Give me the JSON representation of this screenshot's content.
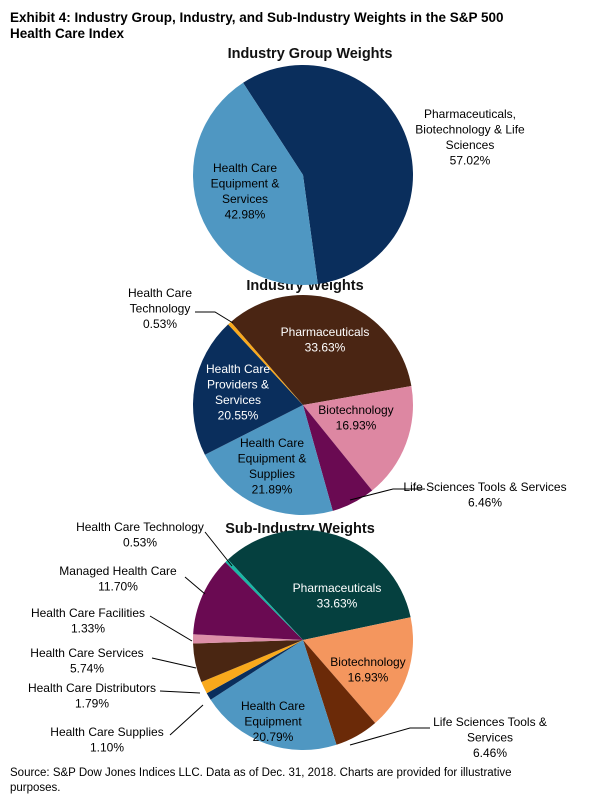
{
  "title": [
    "Exhibit 4: Industry Group, Industry, and Sub-Industry Weights in the S&P 500",
    "Health Care Index"
  ],
  "source": [
    "Source: S&P Dow Jones Indices LLC.  Data as of Dec. 31, 2018.  Charts are provided for illustrative",
    "purposes."
  ],
  "chart_data": [
    {
      "type": "pie",
      "title": "Industry Group Weights",
      "slices": [
        {
          "name": "Pharmaceuticals, Biotechnology & Life Sciences",
          "value": 57.02,
          "color": "#0a2e5c",
          "label": [
            "Pharmaceuticals,",
            "Biotechnology & Life",
            "Sciences",
            "57.02%"
          ]
        },
        {
          "name": "Health Care Equipment & Services",
          "value": 42.98,
          "color": "#4f97c2",
          "label": [
            "Health Care",
            "Equipment &",
            "Services",
            "42.98%"
          ]
        }
      ]
    },
    {
      "type": "pie",
      "title": "Industry Weights",
      "slices": [
        {
          "name": "Pharmaceuticals",
          "value": 33.63,
          "color": "#4a2513",
          "label": [
            "Pharmaceuticals",
            "33.63%"
          ]
        },
        {
          "name": "Biotechnology",
          "value": 16.93,
          "color": "#dd87a2",
          "label": [
            "Biotechnology",
            "16.93%"
          ]
        },
        {
          "name": "Life Sciences Tools & Services",
          "value": 6.46,
          "color": "#6a0a52",
          "label": [
            "Life Sciences Tools & Services",
            "6.46%"
          ]
        },
        {
          "name": "Health Care Equipment & Supplies",
          "value": 21.89,
          "color": "#4f97c2",
          "label": [
            "Health Care",
            "Equipment &",
            "Supplies",
            "21.89%"
          ]
        },
        {
          "name": "Health Care Providers & Services",
          "value": 20.55,
          "color": "#0a2e5c",
          "label": [
            "Health Care",
            "Providers &",
            "Services",
            "20.55%"
          ]
        },
        {
          "name": "Health Care Technology",
          "value": 0.53,
          "color": "#f9a91c",
          "label": [
            "Health Care",
            "Technology",
            "0.53%"
          ]
        }
      ]
    },
    {
      "type": "pie",
      "title": "Sub-Industry Weights",
      "slices": [
        {
          "name": "Pharmaceuticals",
          "value": 33.63,
          "color": "#05403f",
          "label": [
            "Pharmaceuticals",
            "33.63%"
          ]
        },
        {
          "name": "Biotechnology",
          "value": 16.93,
          "color": "#f4965e",
          "label": [
            "Biotechnology",
            "16.93%"
          ]
        },
        {
          "name": "Life Sciences Tools & Services",
          "value": 6.46,
          "color": "#6b2a08",
          "label": [
            "Life Sciences Tools &",
            "Services",
            "6.46%"
          ]
        },
        {
          "name": "Health Care Equipment",
          "value": 20.79,
          "color": "#4f97c2",
          "label": [
            "Health Care",
            "Equipment",
            "20.79%"
          ]
        },
        {
          "name": "Health Care Supplies",
          "value": 1.1,
          "color": "#0a2e5c",
          "label": [
            "Health Care Supplies",
            "1.10%"
          ]
        },
        {
          "name": "Health Care Distributors",
          "value": 1.79,
          "color": "#f9a91c",
          "label": [
            "Health Care Distributors",
            "1.79%"
          ]
        },
        {
          "name": "Health Care Services",
          "value": 5.74,
          "color": "#4a2612",
          "label": [
            "Health Care  Services",
            "5.74%"
          ]
        },
        {
          "name": "Health Care Facilities",
          "value": 1.33,
          "color": "#dd8fa8",
          "label": [
            "Health Care Facilities",
            "1.33%"
          ]
        },
        {
          "name": "Managed Health Care",
          "value": 11.7,
          "color": "#6a0a52",
          "label": [
            "Managed Health Care",
            "11.70%"
          ]
        },
        {
          "name": "Health Care Technology",
          "value": 0.53,
          "color": "#19b6a5",
          "label": [
            "Health Care Technology",
            "0.53%"
          ]
        }
      ]
    }
  ]
}
